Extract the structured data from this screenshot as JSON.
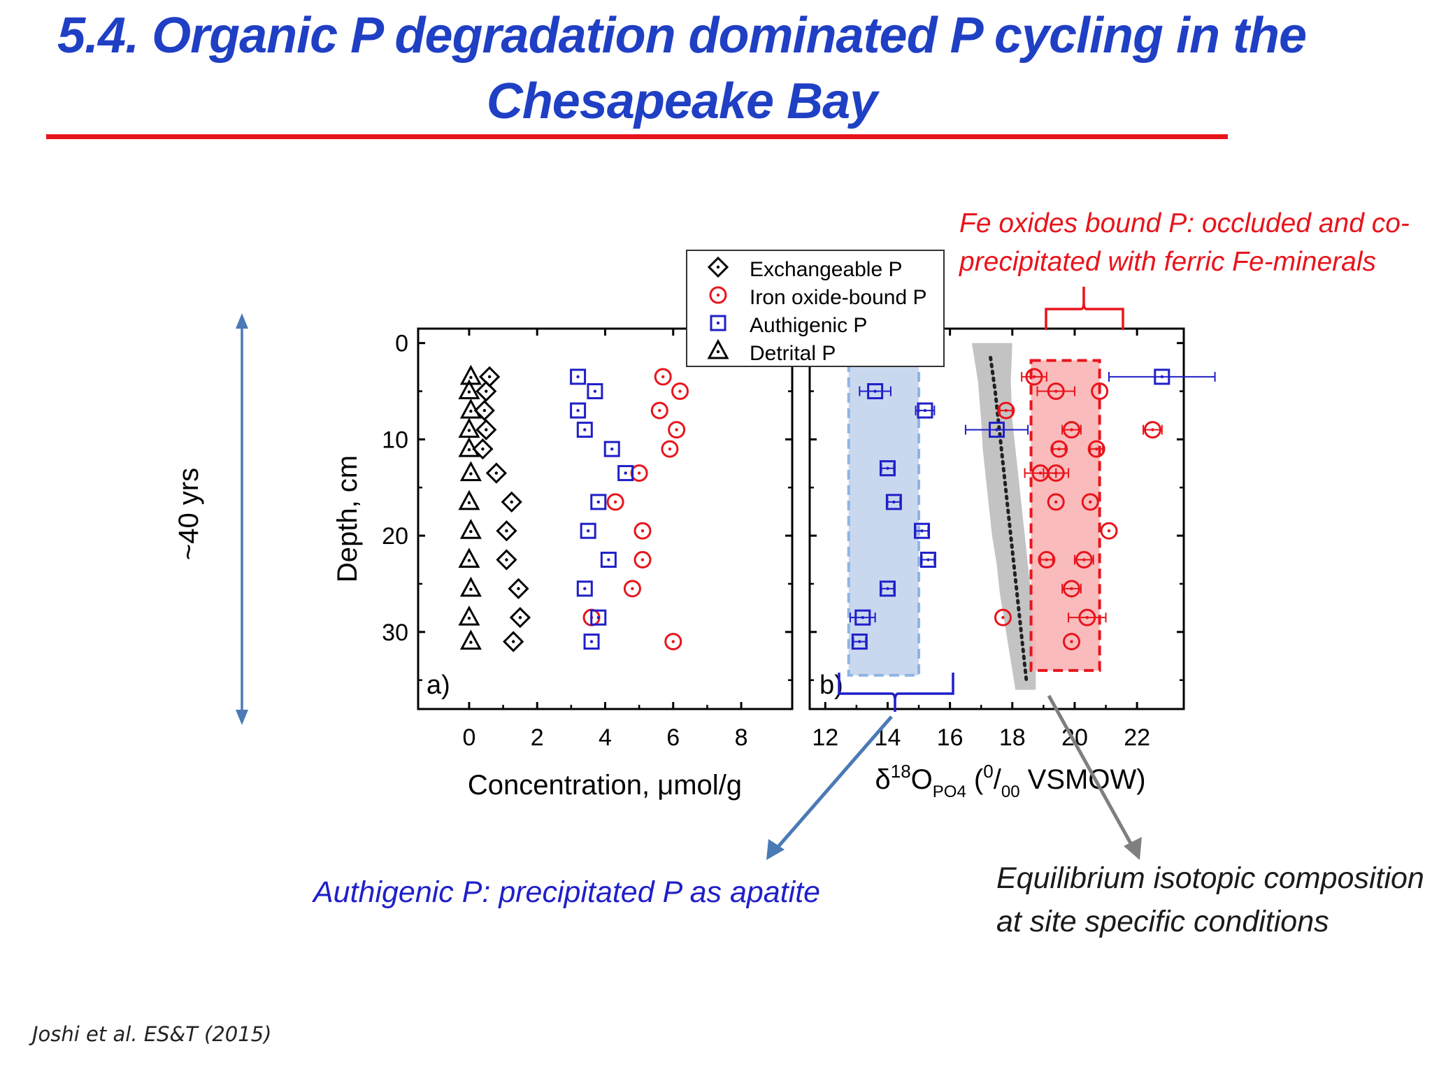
{
  "slide": {
    "title_line1": "5.4. Organic P degradation dominated P cycling in the",
    "title_line2": "Chesapeake Bay",
    "citation": "Joshi et al. ES&T (2015)",
    "time_span_label": "~40 yrs",
    "annotations": {
      "fe_oxides_line1": "Fe oxides bound P: occluded and co-",
      "fe_oxides_line2": "precipitated with ferric Fe-minerals",
      "authigenic": "Authigenic P: precipitated P as apatite",
      "equilibrium_line1": "Equilibrium isotopic composition",
      "equilibrium_line2": "at site specific conditions"
    },
    "colors": {
      "title": "#1f3fc4",
      "title_rule": "#e8141c",
      "exchangeable": "#000000",
      "iron_oxide": "#e8141c",
      "authigenic": "#1f1fc8",
      "detrital": "#000000",
      "fe_annotation": "#e8141c",
      "authigenic_annotation": "#1f1fc8",
      "authigenic_box_fill": "#c9d8ee",
      "authigenic_box_border": "#8fb4e3",
      "fe_box_fill": "#f8b4b4",
      "equilibrium_band": "#b9b9b9",
      "arrow_blue": "#4a7ab5",
      "arrow_gray": "#7f7f7f"
    }
  },
  "chart_data": [
    {
      "type": "scatter",
      "panel_label": "a)",
      "xlabel": "Concentration, μmol/g",
      "ylabel": "Depth, cm",
      "xlim": [
        -1.5,
        9.5
      ],
      "ylim": [
        38,
        -1.5
      ],
      "x_ticks": [
        0,
        2,
        4,
        6,
        8
      ],
      "x_tick_labels": [
        "0",
        "2",
        "4",
        "6",
        "8"
      ],
      "y_ticks": [
        0,
        10,
        20,
        30
      ],
      "y_tick_labels": [
        "0",
        "10",
        "20",
        "30"
      ],
      "legend": [
        "Exchangeable P",
        "Iron oxide-bound P",
        "Authigenic P",
        "Detrital P"
      ],
      "series": [
        {
          "name": "Exchangeable P",
          "marker": "diamond",
          "x": [
            0.6,
            0.5,
            0.45,
            0.5,
            0.4,
            0.8,
            1.25,
            1.1,
            1.1,
            1.45,
            1.5,
            1.3
          ],
          "y": [
            3.5,
            5,
            7,
            9,
            11,
            13.5,
            16.5,
            19.5,
            22.5,
            25.5,
            28.5,
            31
          ]
        },
        {
          "name": "Iron oxide-bound P",
          "marker": "circle",
          "x": [
            5.7,
            6.2,
            5.6,
            6.1,
            5.9,
            5.0,
            4.3,
            5.1,
            5.1,
            4.8,
            3.6,
            6.0
          ],
          "y": [
            3.5,
            5,
            7,
            9,
            11,
            13.5,
            16.5,
            19.5,
            22.5,
            25.5,
            28.5,
            31
          ]
        },
        {
          "name": "Authigenic P",
          "marker": "square",
          "x": [
            3.2,
            3.7,
            3.2,
            3.4,
            4.2,
            4.6,
            3.8,
            3.5,
            4.1,
            3.4,
            3.8,
            3.6
          ],
          "y": [
            3.5,
            5,
            7,
            9,
            11,
            13.5,
            16.5,
            19.5,
            22.5,
            25.5,
            28.5,
            31
          ]
        },
        {
          "name": "Detrital P",
          "marker": "triangle",
          "x": [
            0.05,
            0.0,
            0.05,
            0.0,
            0.0,
            0.05,
            0.0,
            0.05,
            0.0,
            0.05,
            0.0,
            0.05
          ],
          "y": [
            3.5,
            5,
            7,
            9,
            11,
            13.5,
            16.5,
            19.5,
            22.5,
            25.5,
            28.5,
            31
          ]
        }
      ]
    },
    {
      "type": "scatter",
      "panel_label": "b)",
      "xlabel_main": "δ",
      "xlabel_sup1": "18",
      "xlabel_o": "O",
      "xlabel_sub": "PO4",
      "xlabel_open": " (",
      "xlabel_sup2": "0",
      "xlabel_slash": "/",
      "xlabel_sub2": "00",
      "xlabel_tail": " VSMOW)",
      "xlim": [
        11.5,
        23.5
      ],
      "ylim": [
        38,
        -1.5
      ],
      "x_ticks": [
        12,
        14,
        16,
        18,
        20,
        22
      ],
      "x_tick_labels": [
        "12",
        "14",
        "16",
        "18",
        "20",
        "22"
      ],
      "authigenic_range": [
        12.75,
        15.0
      ],
      "authigenic_depth_range": [
        2.3,
        34.5
      ],
      "iron_oxide_range": [
        18.6,
        20.8
      ],
      "iron_oxide_depth_range": [
        1.8,
        34.0
      ],
      "series": [
        {
          "name": "Authigenic P",
          "marker": "square",
          "x": [
            22.8,
            13.6,
            15.2,
            17.5,
            14.0,
            14.2,
            15.1,
            15.3,
            14.0,
            13.2,
            13.1
          ],
          "y": [
            3.5,
            5,
            7,
            9,
            13,
            16.5,
            19.5,
            22.5,
            25.5,
            28.5,
            31
          ],
          "xerr": [
            1.7,
            0.5,
            0.3,
            1.0,
            0.2,
            0.2,
            0.2,
            0.2,
            0.2,
            0.4,
            0.2
          ]
        },
        {
          "name": "Iron oxide-bound P",
          "marker": "circle",
          "x": [
            18.7,
            19.4,
            20.8,
            17.8,
            19.9,
            19.5,
            20.7,
            19.4,
            18.9,
            19.4,
            20.5,
            21.1,
            19.1,
            20.3,
            19.9,
            17.7,
            20.4,
            19.9
          ],
          "y": [
            3.5,
            5,
            5,
            7,
            9,
            11,
            11,
            13.5,
            13.5,
            16.5,
            16.5,
            19.5,
            22.5,
            22.5,
            25.5,
            28.5,
            28.5,
            31
          ],
          "xerr": [
            0.4,
            0.6,
            0,
            0.2,
            0.3,
            0.2,
            0.2,
            0.4,
            0.5,
            0,
            0,
            0,
            0.2,
            0.3,
            0.3,
            0,
            0.6,
            0
          ]
        },
        {
          "name": "Iron oxide-bound P",
          "marker": "circle",
          "x": [
            22.5
          ],
          "y": [
            9
          ],
          "xerr": [
            0.3
          ]
        }
      ],
      "equilibrium_curve": {
        "x": [
          17.3,
          17.45,
          17.55,
          17.65,
          17.75,
          17.85,
          17.95,
          18.05,
          18.15,
          18.25,
          18.35,
          18.45
        ],
        "y": [
          1.5,
          5,
          8,
          11,
          14,
          17,
          20,
          23,
          26,
          29,
          32,
          35
        ]
      },
      "equilibrium_band": {
        "left_x": [
          16.7,
          16.9,
          17.0,
          17.05,
          17.15,
          17.25,
          17.35,
          17.5,
          17.6,
          17.75,
          17.9,
          18.1
        ],
        "right_x": [
          18.0,
          17.95,
          18.0,
          18.1,
          18.2,
          18.3,
          18.4,
          18.5,
          18.6,
          18.7,
          18.75,
          18.75
        ],
        "y": [
          0,
          4,
          8,
          11,
          14,
          17,
          20,
          23,
          26,
          29,
          32,
          36
        ]
      }
    }
  ]
}
